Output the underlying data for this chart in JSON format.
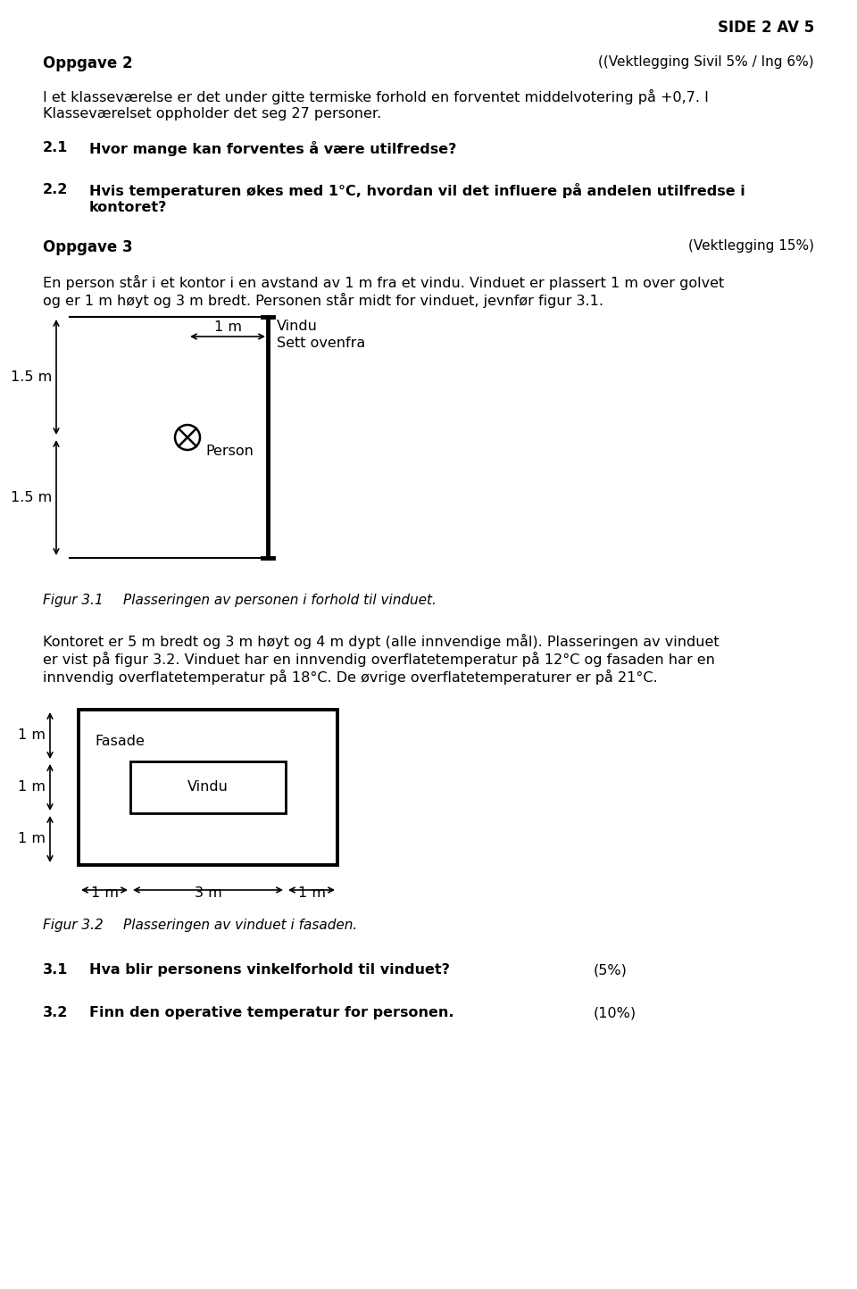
{
  "page_header": "SIDE 2 AV 5",
  "section1_title": "Oppgave 2",
  "section1_weight": "((Vektlegging Sivil 5% / Ing 6%)",
  "section1_body_line1": "I et klasseværelse er det under gitte termiske forhold en forventet middelvotering på +0,7. I",
  "section1_body_line2": "Klasseværelset oppholder det seg 27 personer.",
  "q21_label": "2.1",
  "q21_text": "Hvor mange kan forventes å være utilfredse?",
  "q22_label": "2.2",
  "q22_text_line1": "Hvis temperaturen økes med 1°C, hvordan vil det influere på andelen utilfredse i",
  "q22_text_line2": "kontoret?",
  "section2_title": "Oppgave 3",
  "section2_weight": "(Vektlegging 15%)",
  "section2_body_line1": "En person står i et kontor i en avstand av 1 m fra et vindu. Vinduet er plassert 1 m over golvet",
  "section2_body_line2": "og er 1 m høyt og 3 m bredt. Personen står midt for vinduet, jevnfør figur 3.1.",
  "fig31_label": "Figur 3.1",
  "fig31_caption": "Plasseringen av personen i forhold til vinduet.",
  "body2_line1": "Kontoret er 5 m bredt og 3 m høyt og 4 m dypt (alle innvendige mål). Plasseringen av vinduet",
  "body2_line2": "er vist på figur 3.2. Vinduet har en innvendig overflatetemperatur på 12°C og fasaden har en",
  "body2_line3": "innvendig overflatetemperatur på 18°C. De øvrige overflatetemperaturer er på 21°C.",
  "fig32_label": "Figur 3.2",
  "fig32_caption": "Plasseringen av vinduet i fasaden.",
  "q31_label": "3.1",
  "q31_text": "Hva blir personens vinkelforhold til vinduet?",
  "q31_weight": "(5%)",
  "q32_label": "3.2",
  "q32_text": "Finn den operative temperatur for personen.",
  "q32_weight": "(10%)",
  "bg_color": "#ffffff",
  "text_color": "#000000"
}
